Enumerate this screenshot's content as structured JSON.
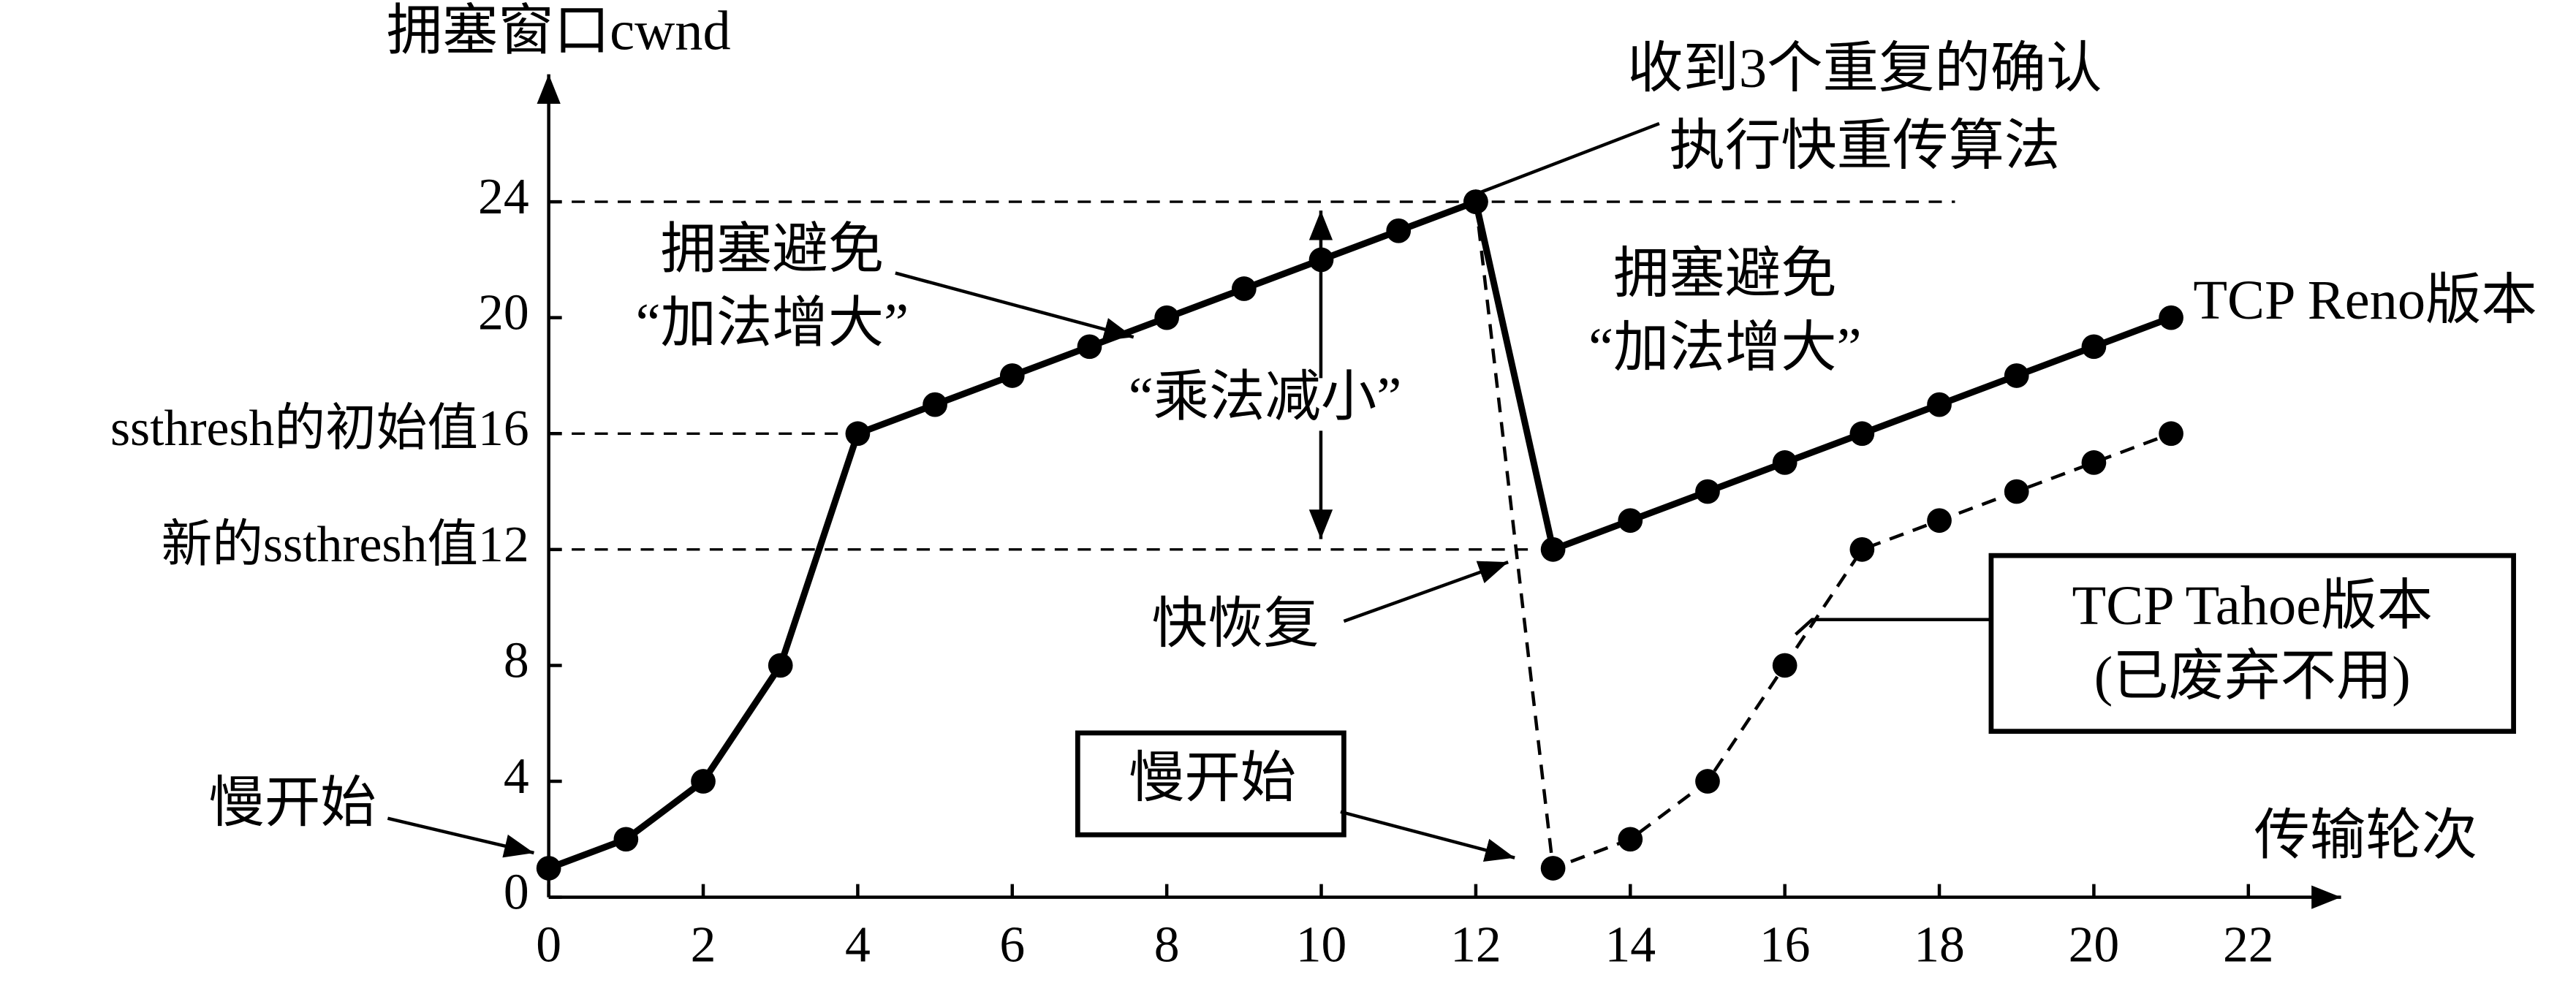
{
  "chart_data": {
    "type": "line",
    "y_label": "拥塞窗口cwnd",
    "x_label": "传输轮次",
    "xlim": [
      0,
      23.2
    ],
    "ylim": [
      0,
      28.4
    ],
    "xticks": [
      0,
      2,
      4,
      6,
      8,
      10,
      12,
      14,
      16,
      18,
      20,
      22
    ],
    "yticks": [
      0,
      4,
      8,
      {
        "value": 12,
        "label": "新的ssthresh值12"
      },
      {
        "value": 16,
        "label": "ssthresh的初始值16"
      },
      20,
      24
    ],
    "series": [
      {
        "name": "TCP Reno版本",
        "color": "#000000",
        "dashed": false,
        "x": [
          0,
          1,
          2,
          3,
          4,
          5,
          6,
          7,
          8,
          9,
          10,
          11,
          12,
          13,
          14,
          15,
          16,
          17,
          18,
          19,
          20,
          21
        ],
        "values": [
          1,
          2,
          4,
          8,
          16,
          17,
          18,
          19,
          20,
          21,
          22,
          23,
          24,
          12,
          13,
          14,
          15,
          16,
          17,
          18,
          19,
          20
        ]
      },
      {
        "name": "TCP Tahoe版本",
        "color": "#000000",
        "dashed": true,
        "x": [
          12,
          13,
          14,
          15,
          16,
          17,
          18,
          19,
          20,
          21
        ],
        "values": [
          24,
          1,
          2,
          4,
          8,
          12,
          13,
          14,
          15,
          16
        ]
      }
    ],
    "annotations": [
      "收到3个重复的确认",
      "执行快重传算法",
      "拥塞避免",
      "“加法增大”",
      "“乘法减小”",
      "拥塞避免",
      "“加法增大”",
      "快恢复",
      "慢开始",
      "慢开始",
      "(已废弃不用)"
    ]
  }
}
